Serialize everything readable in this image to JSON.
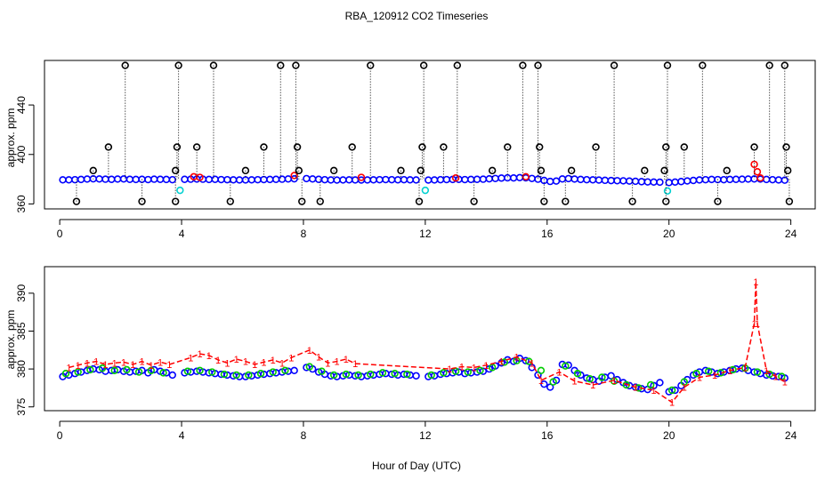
{
  "figure": {
    "title": "RBA_120912  CO2 Timeseries",
    "xlabel": "Hour of Day (UTC)"
  },
  "colors": {
    "black": "#000000",
    "red": "#ff0000",
    "green": "#00cc00",
    "blue": "#0000ff",
    "cyan": "#00d0d0"
  },
  "chart_data": [
    {
      "type": "scatter",
      "panel": "top",
      "title": "RBA_120912  CO2 Timeseries",
      "xlabel": "",
      "ylabel": "approx. ppm",
      "xlim": [
        -0.5,
        24.8
      ],
      "ylim": [
        356,
        476
      ],
      "xticks": [
        0,
        4,
        8,
        12,
        16,
        20,
        24
      ],
      "yticks": [
        360,
        400,
        440
      ],
      "series": [
        {
          "name": "main-blue",
          "color": "#0000ff",
          "marker": "circle",
          "x": [
            0.1,
            0.3,
            0.5,
            0.7,
            0.9,
            1.1,
            1.3,
            1.5,
            1.7,
            1.9,
            2.1,
            2.3,
            2.5,
            2.7,
            2.9,
            3.1,
            3.3,
            3.5,
            3.7,
            4.1,
            4.3,
            4.5,
            4.7,
            4.9,
            5.1,
            5.3,
            5.5,
            5.7,
            5.9,
            6.1,
            6.3,
            6.5,
            6.7,
            6.9,
            7.1,
            7.3,
            7.5,
            7.7,
            8.1,
            8.3,
            8.5,
            8.7,
            8.9,
            9.1,
            9.3,
            9.5,
            9.7,
            9.9,
            10.1,
            10.3,
            10.5,
            10.7,
            10.9,
            11.1,
            11.3,
            11.5,
            11.7,
            12.1,
            12.3,
            12.5,
            12.7,
            12.9,
            13.1,
            13.3,
            13.5,
            13.7,
            13.9,
            14.1,
            14.3,
            14.5,
            14.7,
            14.9,
            15.1,
            15.3,
            15.5,
            15.7,
            15.9,
            16.1,
            16.3,
            16.5,
            16.7,
            16.9,
            17.1,
            17.3,
            17.5,
            17.7,
            17.9,
            18.1,
            18.3,
            18.5,
            18.7,
            18.9,
            19.1,
            19.3,
            19.5,
            19.7,
            20.0,
            20.2,
            20.4,
            20.6,
            20.8,
            21.0,
            21.2,
            21.4,
            21.6,
            21.8,
            22.0,
            22.2,
            22.4,
            22.6,
            22.8,
            23.0,
            23.2,
            23.4,
            23.6,
            23.8
          ],
          "y": [
            379.5,
            379.5,
            379.6,
            379.8,
            380.1,
            380.3,
            380.2,
            380.0,
            379.9,
            380.1,
            380.2,
            379.9,
            379.8,
            379.9,
            379.7,
            380.0,
            379.9,
            379.8,
            379.6,
            379.9,
            380.0,
            380.1,
            380.0,
            379.8,
            379.9,
            379.7,
            379.6,
            379.5,
            379.4,
            379.4,
            379.5,
            379.6,
            379.7,
            379.8,
            379.9,
            380.0,
            380.2,
            380.3,
            380.5,
            380.2,
            379.9,
            379.6,
            379.4,
            379.3,
            379.4,
            379.5,
            379.4,
            379.3,
            379.4,
            379.5,
            379.6,
            379.7,
            379.6,
            379.5,
            379.6,
            379.5,
            379.4,
            379.3,
            379.4,
            379.6,
            379.7,
            379.8,
            379.9,
            379.7,
            379.8,
            379.9,
            380.0,
            380.3,
            380.6,
            380.9,
            381.1,
            381.0,
            381.3,
            381.1,
            380.6,
            380.0,
            379.0,
            378.2,
            378.5,
            380.2,
            380.5,
            380.1,
            379.8,
            379.6,
            379.5,
            379.3,
            379.1,
            378.9,
            378.8,
            378.7,
            378.5,
            378.3,
            378.0,
            377.8,
            377.7,
            377.6,
            377.3,
            377.7,
            378.1,
            378.6,
            379.0,
            379.4,
            379.6,
            379.8,
            379.7,
            379.6,
            379.8,
            379.9,
            380.0,
            380.1,
            380.2,
            380.1,
            379.8,
            379.6,
            379.4,
            379.2
          ]
        },
        {
          "name": "red",
          "color": "#ff0000",
          "marker": "circle",
          "x": [
            4.4,
            4.6,
            7.7,
            9.9,
            13.0,
            15.3,
            22.8,
            22.9,
            23.0
          ],
          "y": [
            382.0,
            381.5,
            383.0,
            381.5,
            381.0,
            382.0,
            392.0,
            386.0,
            381.0
          ]
        },
        {
          "name": "cyan",
          "color": "#00d0d0",
          "marker": "circle",
          "x": [
            3.95,
            12.0,
            19.95
          ],
          "y": [
            371.0,
            371.0,
            370.5
          ]
        },
        {
          "name": "black-upper-spikes",
          "color": "#000000",
          "marker": "circle",
          "x": [
            1.1,
            1.6,
            2.15,
            3.8,
            3.85,
            3.9,
            4.5,
            5.05,
            6.1,
            6.7,
            7.25,
            7.75,
            7.8,
            7.85,
            9.0,
            9.6,
            10.2,
            11.2,
            11.85,
            11.9,
            11.95,
            12.6,
            13.05,
            14.2,
            14.7,
            15.2,
            15.7,
            15.75,
            15.8,
            16.8,
            17.6,
            18.2,
            19.2,
            19.85,
            19.9,
            19.95,
            20.5,
            21.1,
            21.9,
            22.8,
            23.3,
            23.8,
            23.85,
            23.9
          ],
          "y": [
            387.0,
            406.0,
            472.0,
            387.0,
            406.0,
            472.0,
            406.0,
            472.0,
            387.0,
            406.0,
            472.0,
            472.0,
            406.0,
            387.0,
            387.0,
            406.0,
            472.0,
            387.0,
            387.0,
            406.0,
            472.0,
            406.0,
            472.0,
            387.0,
            406.0,
            472.0,
            472.0,
            406.0,
            387.0,
            387.0,
            406.0,
            472.0,
            387.0,
            387.0,
            406.0,
            472.0,
            406.0,
            472.0,
            387.0,
            406.0,
            472.0,
            472.0,
            406.0,
            387.0
          ]
        },
        {
          "name": "black-lower",
          "color": "#000000",
          "marker": "circle",
          "x": [
            0.55,
            2.7,
            3.8,
            5.6,
            7.95,
            8.55,
            11.8,
            13.6,
            15.9,
            16.6,
            18.8,
            19.9,
            21.6,
            23.95
          ],
          "y": [
            362.0,
            362.0,
            362.0,
            362.0,
            362.0,
            362.0,
            362.0,
            362.0,
            362.0,
            362.0,
            362.0,
            362.0,
            362.0,
            362.0
          ]
        }
      ]
    },
    {
      "type": "scatter",
      "panel": "bottom",
      "xlabel": "Hour of Day (UTC)",
      "ylabel": "approx. ppm",
      "xlim": [
        -0.5,
        24.8
      ],
      "ylim": [
        374.5,
        393.5
      ],
      "xticks": [
        0,
        4,
        8,
        12,
        16,
        20,
        24
      ],
      "yticks": [
        375,
        380,
        385,
        390
      ],
      "series": [
        {
          "name": "blue",
          "color": "#0000ff",
          "marker": "circle",
          "x": [
            0.1,
            0.3,
            0.5,
            0.7,
            0.9,
            1.1,
            1.3,
            1.5,
            1.7,
            1.9,
            2.1,
            2.3,
            2.5,
            2.7,
            2.9,
            3.1,
            3.3,
            3.5,
            3.7,
            4.1,
            4.3,
            4.5,
            4.7,
            4.9,
            5.1,
            5.3,
            5.5,
            5.7,
            5.9,
            6.1,
            6.3,
            6.5,
            6.7,
            6.9,
            7.1,
            7.3,
            7.5,
            7.7,
            8.1,
            8.3,
            8.5,
            8.7,
            8.9,
            9.1,
            9.3,
            9.5,
            9.7,
            9.9,
            10.1,
            10.3,
            10.5,
            10.7,
            10.9,
            11.1,
            11.3,
            11.5,
            11.7,
            12.1,
            12.3,
            12.5,
            12.7,
            12.9,
            13.1,
            13.3,
            13.5,
            13.7,
            13.9,
            14.1,
            14.3,
            14.5,
            14.7,
            14.9,
            15.1,
            15.3,
            15.5,
            15.7,
            15.9,
            16.1,
            16.3,
            16.5,
            16.7,
            16.9,
            17.1,
            17.3,
            17.5,
            17.7,
            17.9,
            18.1,
            18.3,
            18.5,
            18.7,
            18.9,
            19.1,
            19.3,
            19.5,
            19.7,
            20.0,
            20.2,
            20.4,
            20.6,
            20.8,
            21.0,
            21.2,
            21.4,
            21.6,
            21.8,
            22.0,
            22.2,
            22.4,
            22.6,
            22.8,
            23.0,
            23.2,
            23.4,
            23.6,
            23.8
          ],
          "y": [
            379.0,
            379.2,
            379.4,
            379.6,
            379.8,
            380.0,
            379.9,
            379.7,
            379.8,
            379.9,
            379.7,
            379.6,
            379.7,
            379.8,
            379.5,
            379.9,
            379.7,
            379.5,
            379.2,
            379.5,
            379.6,
            379.7,
            379.6,
            379.5,
            379.4,
            379.3,
            379.2,
            379.1,
            379.0,
            379.0,
            379.1,
            379.2,
            379.3,
            379.4,
            379.5,
            379.6,
            379.7,
            379.8,
            380.2,
            380.0,
            379.6,
            379.3,
            379.1,
            379.0,
            379.1,
            379.2,
            379.1,
            379.0,
            379.1,
            379.2,
            379.3,
            379.4,
            379.3,
            379.2,
            379.3,
            379.2,
            379.1,
            379.0,
            379.1,
            379.3,
            379.4,
            379.5,
            379.6,
            379.4,
            379.5,
            379.6,
            379.7,
            380.0,
            380.4,
            380.8,
            381.2,
            381.0,
            381.4,
            381.1,
            380.2,
            379.2,
            378.0,
            377.6,
            378.5,
            380.6,
            380.5,
            379.8,
            379.2,
            378.8,
            378.6,
            378.4,
            378.9,
            379.1,
            378.6,
            378.2,
            377.8,
            377.6,
            377.4,
            377.3,
            377.8,
            378.2,
            377.0,
            377.2,
            377.8,
            378.6,
            379.2,
            379.6,
            379.8,
            379.6,
            379.4,
            379.6,
            379.8,
            380.0,
            380.1,
            379.8,
            379.6,
            379.4,
            379.2,
            379.1,
            379.0,
            378.8
          ]
        },
        {
          "name": "green",
          "color": "#00cc00",
          "marker": "circle",
          "x": [
            0.2,
            0.6,
            1.0,
            1.4,
            1.8,
            2.2,
            2.6,
            3.0,
            3.4,
            4.2,
            4.6,
            5.0,
            5.4,
            5.8,
            6.2,
            6.6,
            7.0,
            7.4,
            8.2,
            8.6,
            9.0,
            9.4,
            9.8,
            10.2,
            10.6,
            11.0,
            11.4,
            12.2,
            12.6,
            13.0,
            13.4,
            13.8,
            14.2,
            14.6,
            15.0,
            15.4,
            15.8,
            16.2,
            16.6,
            17.0,
            17.4,
            17.8,
            18.2,
            18.6,
            19.0,
            19.4,
            20.1,
            20.5,
            20.9,
            21.3,
            21.7,
            22.1,
            22.5,
            22.9,
            23.3,
            23.7
          ],
          "y": [
            379.4,
            379.6,
            379.9,
            380.1,
            379.8,
            379.9,
            379.6,
            379.8,
            379.5,
            379.7,
            379.8,
            379.6,
            379.3,
            379.2,
            379.2,
            379.4,
            379.6,
            379.8,
            380.3,
            379.7,
            379.2,
            379.3,
            379.2,
            379.3,
            379.5,
            379.4,
            379.3,
            379.2,
            379.5,
            379.7,
            379.6,
            379.8,
            380.2,
            380.9,
            381.1,
            381.0,
            379.8,
            378.3,
            380.4,
            379.4,
            378.7,
            378.9,
            378.4,
            377.9,
            377.5,
            377.9,
            377.2,
            378.3,
            379.4,
            379.7,
            379.5,
            379.9,
            380.1,
            379.6,
            379.3,
            379.0
          ]
        },
        {
          "name": "red-1",
          "color": "#ff0000",
          "marker": "1",
          "x": [
            0.3,
            0.6,
            0.9,
            1.2,
            1.5,
            1.8,
            2.1,
            2.4,
            2.7,
            3.0,
            3.3,
            3.6,
            4.3,
            4.6,
            4.9,
            5.2,
            5.5,
            5.8,
            6.1,
            6.4,
            6.7,
            7.0,
            7.3,
            7.6,
            8.2,
            8.5,
            8.8,
            9.1,
            9.4,
            9.7,
            12.8,
            13.2,
            13.6,
            14.0,
            14.5,
            15.0,
            15.5,
            15.8,
            16.4,
            16.9,
            17.5,
            18.2,
            18.9,
            19.5,
            20.1,
            20.5,
            21.0,
            21.5,
            22.0,
            22.5,
            22.8,
            22.85,
            22.9,
            23.2,
            23.5,
            23.8
          ],
          "y": [
            380.2,
            380.5,
            380.8,
            381.0,
            380.6,
            380.8,
            380.9,
            380.6,
            381.0,
            380.5,
            380.9,
            380.6,
            381.5,
            382.0,
            381.8,
            381.2,
            380.8,
            381.3,
            381.0,
            380.6,
            380.9,
            381.2,
            380.8,
            381.5,
            382.5,
            381.6,
            380.8,
            381.0,
            381.3,
            380.7,
            380.0,
            380.3,
            380.2,
            380.5,
            381.0,
            381.6,
            380.8,
            378.5,
            379.6,
            378.4,
            377.9,
            378.5,
            377.6,
            377.2,
            375.6,
            377.6,
            378.9,
            379.2,
            379.8,
            380.2,
            386.0,
            391.5,
            386.0,
            379.8,
            379.0,
            378.3
          ]
        }
      ]
    }
  ]
}
